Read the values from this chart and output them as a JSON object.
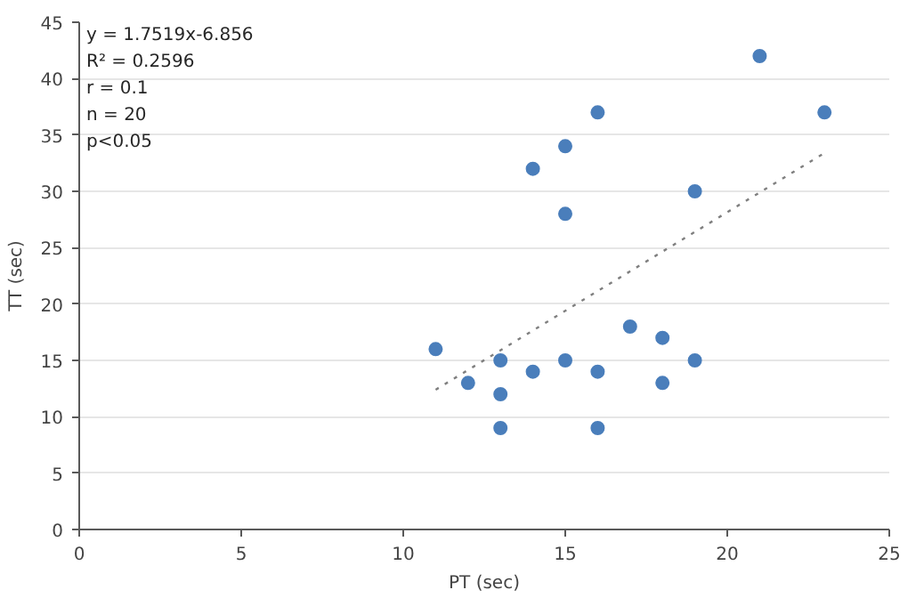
{
  "chart_data": {
    "type": "scatter",
    "xlabel": "PT (sec)",
    "ylabel": "TT (sec)",
    "xlim": [
      0,
      25
    ],
    "xticks": [
      0,
      5,
      10,
      15,
      20,
      25
    ],
    "ylim": [
      0,
      45
    ],
    "yticks": [
      0,
      5,
      10,
      15,
      20,
      25,
      30,
      35,
      40,
      45
    ],
    "grid": "y",
    "marker": "circle",
    "series": [
      {
        "color": "#4a7ebb",
        "x": [
          11,
          12,
          13,
          13,
          13,
          14,
          14,
          15,
          15,
          15,
          16,
          16,
          16,
          17,
          18,
          18,
          19,
          19,
          21,
          23
        ],
        "values": [
          16,
          13,
          15,
          12,
          9,
          14,
          32,
          15,
          34,
          28,
          14,
          9,
          37,
          18,
          17,
          13,
          15,
          30,
          42,
          37
        ]
      },
      {
        "type": "line",
        "color": "#7f7f7f",
        "line_style": "dotted",
        "marker": "none",
        "x": [
          11,
          23
        ],
        "values": [
          12.4,
          33.4
        ]
      }
    ],
    "annotations": [
      "y = 1.7519x-6.856",
      "R² = 0.2596",
      "r = 0.1",
      "n = 20",
      "p<0.05"
    ]
  }
}
